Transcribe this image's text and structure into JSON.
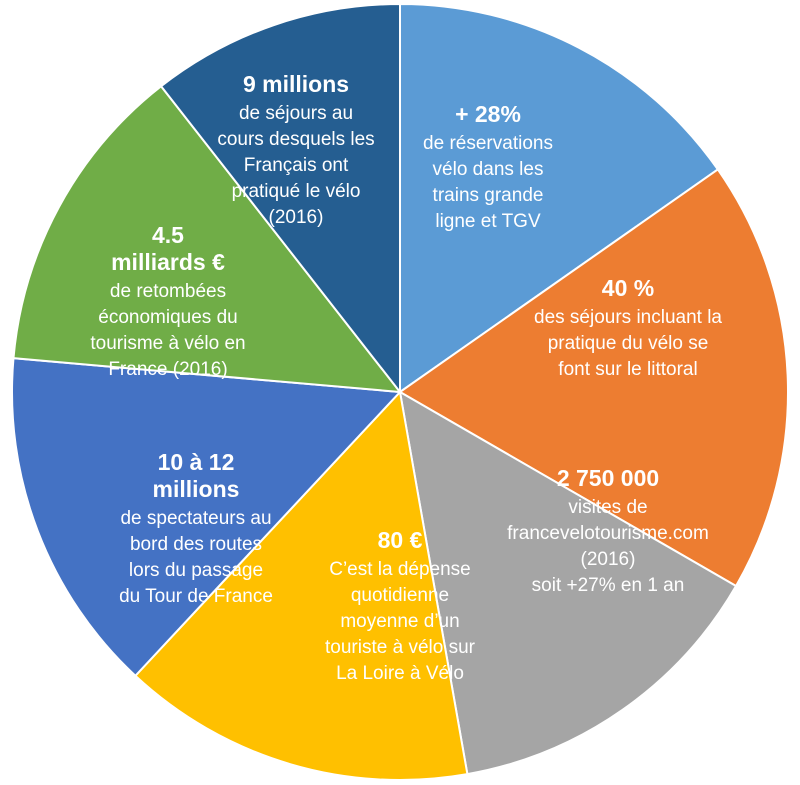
{
  "chart_data": {
    "type": "pie",
    "slices": [
      {
        "key": "train",
        "color": "#5b9bd5",
        "value": 1,
        "headline": [
          "+ 28%"
        ],
        "lines": [
          "de réservations",
          "vélo dans les",
          "trains grande",
          "ligne et TGV"
        ]
      },
      {
        "key": "littoral",
        "color": "#ed7d31",
        "value": 1,
        "headline": [
          "40 %"
        ],
        "lines": [
          "des séjours incluant la",
          "pratique du vélo se",
          "font sur le littoral"
        ]
      },
      {
        "key": "visites",
        "color": "#a5a5a5",
        "value": 1,
        "headline": [
          "2 750 000"
        ],
        "lines": [
          "visites de",
          "francevelotourisme.com",
          "(2016)",
          "soit +27% en 1 an"
        ]
      },
      {
        "key": "depense",
        "color": "#ffc000",
        "value": 1,
        "headline": [
          "80 €"
        ],
        "lines": [
          "C’est la dépense",
          "quotidienne",
          "moyenne d’un",
          "touriste à vélo sur",
          "La Loire à Vélo"
        ]
      },
      {
        "key": "spectateurs",
        "color": "#4472c4",
        "value": 1,
        "headline": [
          "10 à 12",
          "millions"
        ],
        "lines": [
          "de spectateurs au",
          "bord des routes",
          "lors du passage",
          "du Tour de France"
        ]
      },
      {
        "key": "retombees",
        "color": "#70ad47",
        "value": 1,
        "headline": [
          "4.5",
          "milliards €"
        ],
        "lines": [
          "de retombées",
          "économiques du",
          "tourisme à vélo en",
          "France (2016)"
        ]
      },
      {
        "key": "sejours",
        "color": "#255e91",
        "value": 1,
        "headline": [
          "9 millions"
        ],
        "lines": [
          "de séjours au",
          "cours desquels les",
          "Français ont",
          "pratiqué le vélo",
          "(2016)"
        ]
      }
    ]
  }
}
